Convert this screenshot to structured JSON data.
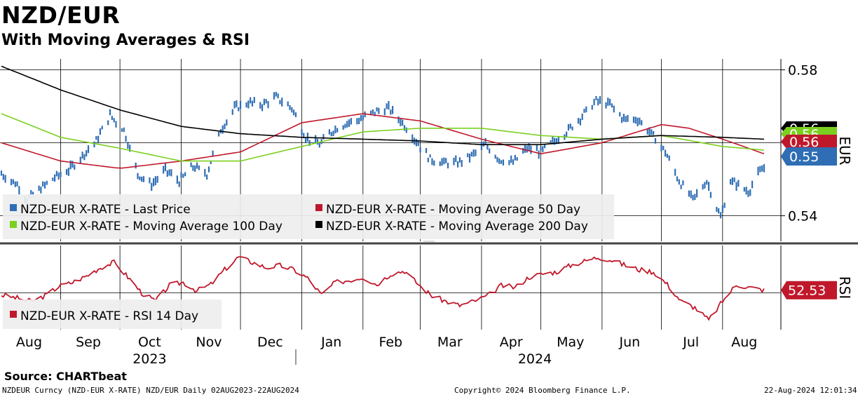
{
  "header": {
    "title": "NZD/EUR",
    "subtitle": "With Moving Averages & RSI"
  },
  "colors": {
    "last_price": "#2f6eb4",
    "ma50": "#c0182b",
    "ma100": "#7bd01f",
    "ma200": "#000000",
    "rsi": "#c0182b"
  },
  "chart_data": [
    {
      "type": "line",
      "panel": "price",
      "y_axis_label": "EUR",
      "ylim": [
        0.533,
        0.583
      ],
      "y_ticks": [
        0.54,
        0.58
      ],
      "grid": true,
      "legend_position": "bottom-left",
      "x_range": [
        "2023-08-02",
        "2024-08-22"
      ],
      "series": [
        {
          "name": "NZD-EUR X-RATE - Last Price",
          "style": "bar",
          "x": [
            "2023-08-02",
            "2023-08-10",
            "2023-08-15",
            "2023-08-22",
            "2023-08-29",
            "2023-09-05",
            "2023-09-12",
            "2023-09-19",
            "2023-09-26",
            "2023-10-03",
            "2023-10-10",
            "2023-10-17",
            "2023-10-24",
            "2023-10-31",
            "2023-11-07",
            "2023-11-14",
            "2023-11-21",
            "2023-11-28",
            "2023-12-05",
            "2023-12-12",
            "2023-12-19",
            "2023-12-27",
            "2024-01-03",
            "2024-01-10",
            "2024-01-17",
            "2024-01-24",
            "2024-01-31",
            "2024-02-07",
            "2024-02-14",
            "2024-02-21",
            "2024-02-28",
            "2024-03-06",
            "2024-03-13",
            "2024-03-20",
            "2024-03-27",
            "2024-04-03",
            "2024-04-10",
            "2024-04-17",
            "2024-04-24",
            "2024-05-01",
            "2024-05-08",
            "2024-05-15",
            "2024-05-22",
            "2024-05-29",
            "2024-06-05",
            "2024-06-12",
            "2024-06-19",
            "2024-06-26",
            "2024-07-03",
            "2024-07-10",
            "2024-07-17",
            "2024-07-24",
            "2024-07-31",
            "2024-08-05",
            "2024-08-09",
            "2024-08-14",
            "2024-08-19",
            "2024-08-22"
          ],
          "values": [
            0.5515,
            0.5485,
            0.5445,
            0.5475,
            0.5505,
            0.5525,
            0.5565,
            0.5605,
            0.5675,
            0.5635,
            0.5515,
            0.5485,
            0.5525,
            0.5495,
            0.5535,
            0.5515,
            0.5635,
            0.5695,
            0.571,
            0.5705,
            0.5725,
            0.5695,
            0.5615,
            0.5595,
            0.5635,
            0.5655,
            0.5665,
            0.5685,
            0.5695,
            0.5655,
            0.5605,
            0.5555,
            0.5545,
            0.5545,
            0.5565,
            0.5595,
            0.5555,
            0.5545,
            0.5585,
            0.5575,
            0.5605,
            0.5635,
            0.5675,
            0.5715,
            0.5705,
            0.5665,
            0.5665,
            0.5625,
            0.5575,
            0.5495,
            0.5445,
            0.5495,
            0.5395,
            0.5495,
            0.5485,
            0.5465,
            0.5515,
            0.553
          ]
        },
        {
          "name": "NZD-EUR X-RATE - Moving Average 50 Day",
          "style": "line",
          "x": [
            "2023-08-02",
            "2023-09-01",
            "2023-10-01",
            "2023-11-01",
            "2023-12-01",
            "2024-01-01",
            "2024-02-01",
            "2024-03-01",
            "2024-04-01",
            "2024-05-01",
            "2024-06-01",
            "2024-07-01",
            "2024-07-15",
            "2024-08-01",
            "2024-08-22"
          ],
          "values": [
            0.56,
            0.555,
            0.553,
            0.555,
            0.5575,
            0.5655,
            0.568,
            0.566,
            0.561,
            0.557,
            0.56,
            0.565,
            0.564,
            0.561,
            0.557
          ]
        },
        {
          "name": "NZD-EUR X-RATE - Moving Average 100 Day",
          "style": "line",
          "x": [
            "2023-08-02",
            "2023-09-01",
            "2023-10-01",
            "2023-11-01",
            "2023-12-01",
            "2024-01-01",
            "2024-02-01",
            "2024-03-01",
            "2024-04-01",
            "2024-05-01",
            "2024-06-01",
            "2024-07-01",
            "2024-08-01",
            "2024-08-22"
          ],
          "values": [
            0.568,
            0.5615,
            0.5585,
            0.555,
            0.555,
            0.559,
            0.563,
            0.564,
            0.564,
            0.562,
            0.561,
            0.562,
            0.559,
            0.558
          ]
        },
        {
          "name": "NZD-EUR X-RATE - Moving Average 200 Day",
          "style": "line",
          "x": [
            "2023-08-02",
            "2023-09-01",
            "2023-10-01",
            "2023-11-01",
            "2023-12-01",
            "2024-01-01",
            "2024-02-01",
            "2024-03-01",
            "2024-04-01",
            "2024-05-01",
            "2024-06-01",
            "2024-07-01",
            "2024-08-01",
            "2024-08-22"
          ],
          "values": [
            0.581,
            0.5745,
            0.569,
            0.5645,
            0.5625,
            0.5615,
            0.561,
            0.5605,
            0.5595,
            0.5595,
            0.561,
            0.562,
            0.5615,
            0.561
          ]
        }
      ],
      "value_tags": [
        {
          "value": "0.56",
          "color": "#000000"
        },
        {
          "value": "0.56",
          "color": "#7bd01f"
        },
        {
          "value": "0.56",
          "color": "#c0182b"
        },
        {
          "value": "0.55",
          "color": "#2f6eb4"
        }
      ]
    },
    {
      "type": "line",
      "panel": "rsi",
      "y_axis_label": "RSI",
      "ylim": [
        15,
        95
      ],
      "grid": true,
      "legend_position": "bottom-left",
      "series": [
        {
          "name": "NZD-EUR X-RATE - RSI 14 Day",
          "x": [
            "2023-08-02",
            "2023-08-10",
            "2023-08-17",
            "2023-08-24",
            "2023-08-31",
            "2023-09-07",
            "2023-09-14",
            "2023-09-21",
            "2023-09-28",
            "2023-10-05",
            "2023-10-12",
            "2023-10-19",
            "2023-10-26",
            "2023-11-02",
            "2023-11-09",
            "2023-11-16",
            "2023-11-23",
            "2023-11-30",
            "2023-12-07",
            "2023-12-14",
            "2023-12-21",
            "2023-12-28",
            "2024-01-04",
            "2024-01-11",
            "2024-01-18",
            "2024-01-25",
            "2024-02-01",
            "2024-02-08",
            "2024-02-15",
            "2024-02-22",
            "2024-02-29",
            "2024-03-07",
            "2024-03-14",
            "2024-03-21",
            "2024-03-28",
            "2024-04-04",
            "2024-04-11",
            "2024-04-18",
            "2024-04-25",
            "2024-05-02",
            "2024-05-09",
            "2024-05-16",
            "2024-05-23",
            "2024-05-30",
            "2024-06-06",
            "2024-06-13",
            "2024-06-20",
            "2024-06-27",
            "2024-07-04",
            "2024-07-11",
            "2024-07-18",
            "2024-07-25",
            "2024-08-01",
            "2024-08-08",
            "2024-08-15",
            "2024-08-22"
          ],
          "values": [
            48,
            45,
            42,
            47,
            56,
            60,
            66,
            74,
            79,
            65,
            50,
            42,
            57,
            60,
            52,
            58,
            72,
            84,
            79,
            74,
            76,
            72,
            64,
            48,
            60,
            62,
            65,
            58,
            68,
            71,
            58,
            47,
            42,
            38,
            42,
            47,
            57,
            55,
            65,
            68,
            70,
            76,
            80,
            84,
            81,
            76,
            72,
            70,
            58,
            42,
            36,
            24,
            42,
            58,
            55,
            52.53
          ]
        }
      ],
      "value_tags": [
        {
          "value": "52.53",
          "color": "#c0182b"
        }
      ]
    }
  ],
  "x_axis": {
    "months": [
      "Aug",
      "Sep",
      "Oct",
      "Nov",
      "Dec",
      "Jan",
      "Feb",
      "Mar",
      "Apr",
      "May",
      "Jun",
      "Jul",
      "Aug"
    ],
    "years": [
      "2023",
      "2024"
    ]
  },
  "footer": {
    "source": "Source: CHARTbeat",
    "left": "NZDEUR Curncy (NZD-EUR X-RATE) NZD/EUR  Daily 02AUG2023-22AUG2024",
    "mid": "Copyright© 2024 Bloomberg Finance L.P.",
    "right": "22-Aug-2024 12:01:34"
  }
}
